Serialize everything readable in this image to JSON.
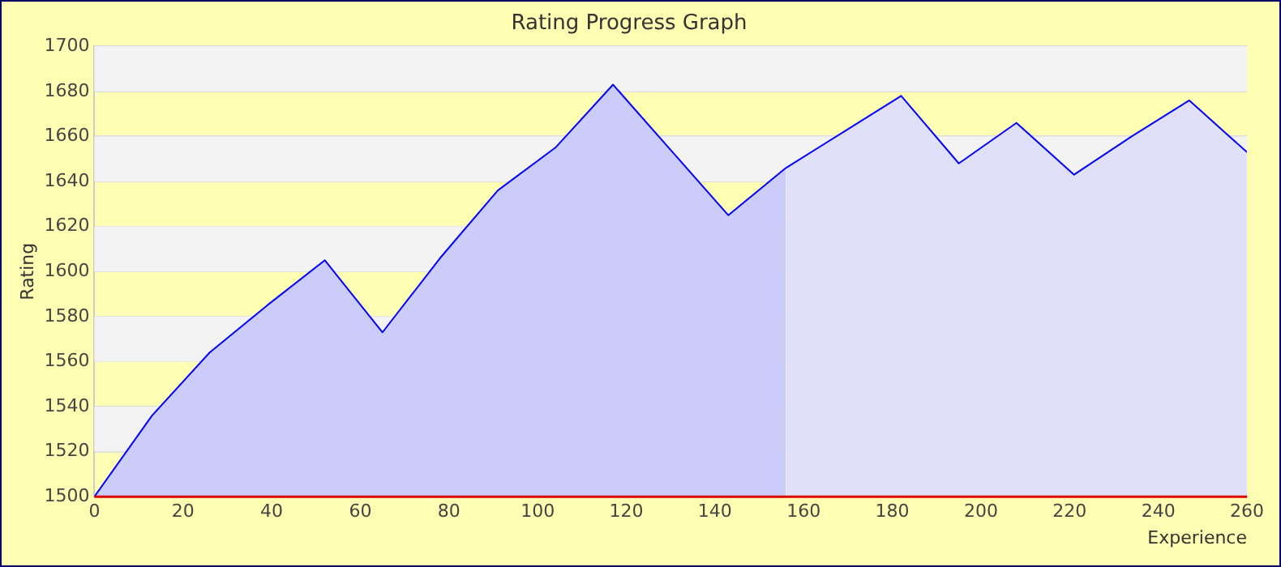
{
  "chart_data": {
    "type": "area",
    "title": "Rating Progress Graph",
    "xlabel": "Experience",
    "ylabel": "Rating",
    "series": [
      {
        "color": "#ccccfa",
        "x": [
          0,
          13,
          26,
          39,
          52,
          65,
          78,
          91,
          104,
          117,
          130,
          143,
          156
        ],
        "values": [
          1500,
          1536,
          1564,
          1585,
          1605,
          1573,
          1606,
          1636,
          1655,
          1683,
          1654,
          1625,
          1646
        ]
      },
      {
        "color": "#e0e0fa",
        "x": [
          156,
          169,
          182,
          195,
          208,
          221,
          234,
          247,
          260
        ],
        "values": [
          1646,
          1662,
          1678,
          1648,
          1666,
          1643,
          1660,
          1676,
          1653
        ]
      }
    ],
    "xlim": [
      0,
      260
    ],
    "xticks": [
      0,
      20,
      40,
      60,
      80,
      100,
      120,
      140,
      160,
      180,
      200,
      220,
      240,
      260
    ],
    "ylim": [
      1500,
      1700
    ],
    "yticks": [
      1500,
      1520,
      1540,
      1560,
      1580,
      1600,
      1620,
      1640,
      1660,
      1680,
      1700
    ],
    "ref_lines": [
      {
        "axis": "y",
        "value": 1500,
        "color": "#dd0000"
      }
    ],
    "grid": "y",
    "legend": false,
    "marker": "none",
    "line_style": "solid"
  }
}
